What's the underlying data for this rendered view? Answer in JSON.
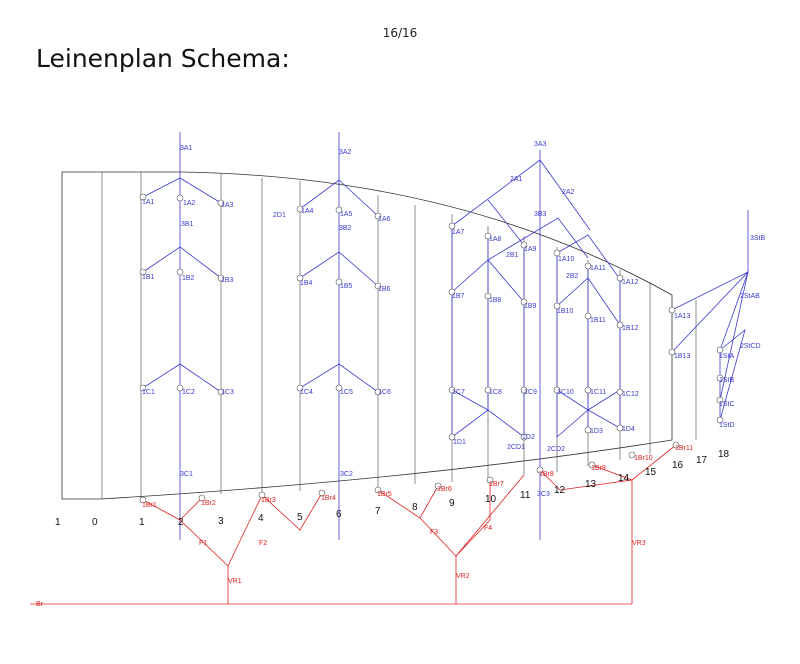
{
  "page_number": "16/16",
  "title": "Leinenplan Schema:",
  "diagram": {
    "rib_numbers": [
      "1",
      "0",
      "1",
      "2",
      "3",
      "4",
      "5",
      "6",
      "7",
      "8",
      "9",
      "10",
      "11",
      "12",
      "13",
      "14",
      "15",
      "16",
      "17",
      "18"
    ],
    "top_risers": [
      "3A1",
      "3A2",
      "3A3"
    ],
    "upper_cascade": [
      "2A1",
      "2A2",
      "3B3",
      "2B1",
      "2B2",
      "3B1",
      "3B2",
      "2D1",
      "3StB",
      "2StAB",
      "2StCD"
    ],
    "a_lines": [
      "1A1",
      "1A2",
      "1A3",
      "1A4",
      "1A5",
      "1A6",
      "1A7",
      "1A8",
      "1A9",
      "1A10",
      "1A11",
      "1A12",
      "1A13"
    ],
    "b_lines": [
      "1B1",
      "1B2",
      "1B3",
      "1B4",
      "1B5",
      "1B6",
      "1B7",
      "1B8",
      "1B9",
      "1B10",
      "1B11",
      "1B12",
      "1B13"
    ],
    "c_lines": [
      "1C1",
      "1C2",
      "1C3",
      "1C4",
      "1C5",
      "1C6",
      "1C7",
      "1C8",
      "1C9",
      "1C10",
      "1C11",
      "1C12"
    ],
    "d_lines": [
      "1D1",
      "1D2",
      "1D3",
      "1D4",
      "2CD1",
      "2CD2"
    ],
    "stabilo": [
      "1StA",
      "1StB",
      "1StC",
      "1StD"
    ],
    "lower_cascade": [
      "3C1",
      "3C2",
      "3C3"
    ],
    "brake_lines": [
      "1Br1",
      "1Br2",
      "1Br3",
      "1Br4",
      "1Br5",
      "1Br6",
      "1Br7",
      "1Br8",
      "1Br9",
      "1Br10",
      "1Br11"
    ],
    "brake_cascade": [
      "F1",
      "F2",
      "F3",
      "F4",
      "VR1",
      "VR2",
      "VR3",
      "Br"
    ],
    "colors": {
      "line_blue": "#3b3bd0",
      "brake_red": "#e02020",
      "outline": "#333333"
    }
  }
}
